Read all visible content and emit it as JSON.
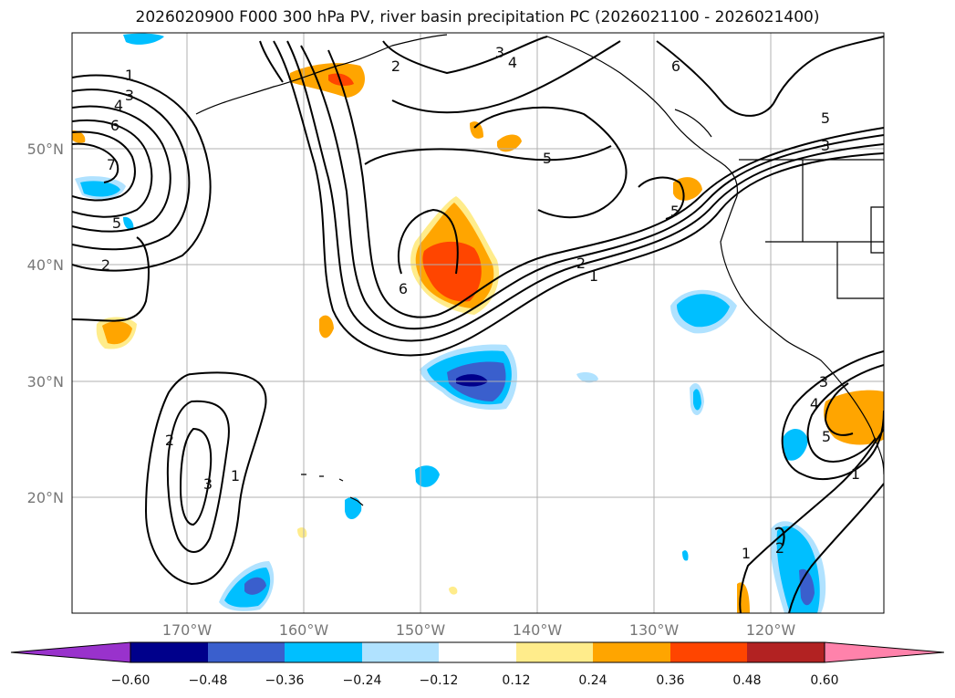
{
  "title": "2026020900 F000 300 hPa PV, river basin precipitation PC (2026021100 - 2026021400)",
  "map": {
    "lon_ticks": [
      "170°W",
      "160°W",
      "150°W",
      "140°W",
      "130°W",
      "120°W"
    ],
    "lat_ticks": [
      "50°N",
      "40°N",
      "30°N",
      "20°N"
    ],
    "grid": true,
    "contour_labels": [
      "1",
      "3",
      "4",
      "6",
      "7",
      "5",
      "2",
      "2",
      "3",
      "4",
      "5",
      "3",
      "5",
      "6",
      "5",
      "6",
      "2",
      "1",
      "2",
      "3",
      "1",
      "3",
      "4",
      "5",
      "1",
      "1",
      "2"
    ],
    "colors": {
      "coastline": "#000000",
      "contour": "#000000",
      "grid": "#b0b0b0"
    }
  },
  "colorbar": {
    "levels": [
      "−0.60",
      "−0.48",
      "−0.36",
      "−0.24",
      "−0.12",
      "0.12",
      "0.24",
      "0.36",
      "0.48",
      "0.60"
    ],
    "colors": [
      "#9932cc",
      "#00008b",
      "#3a5fcd",
      "#00bfff",
      "#b0e2ff",
      "#ffffff",
      "#ffec8b",
      "#ffa500",
      "#ff4500",
      "#b22222",
      "#ff82ab"
    ]
  }
}
